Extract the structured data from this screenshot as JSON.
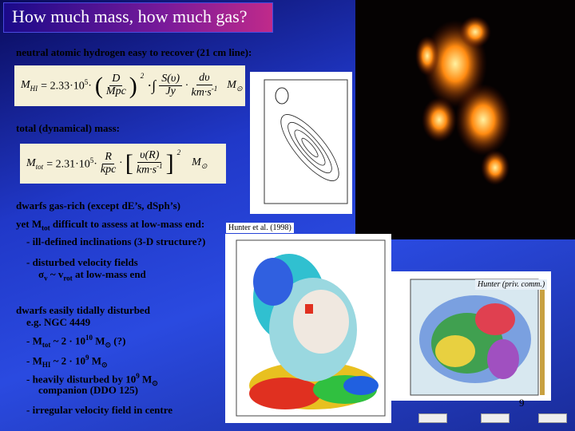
{
  "title": "How much mass, how much gas?",
  "hi_heading": "neutral atomic hydrogen easy to recover (21 cm line):",
  "hi_formula": {
    "m": "M",
    "sub": "HI",
    "coef": "= 2.33·10",
    "exp": "5",
    "dot1": "·",
    "d_num": "D",
    "d_den": "Mpc",
    "pow": "2",
    "integral": "·∫",
    "s_num": "S(υ)",
    "s_den": "Jy",
    "dot2": "·",
    "v_num": "dυ",
    "v_den": "km·s",
    "v_exp": "-1",
    "sun_m": "M",
    "sun": "⊙"
  },
  "dyn_heading": "total (dynamical) mass:",
  "dyn_formula": {
    "m": "M",
    "sub": "tot",
    "coef": "= 2.31·10",
    "exp": "5",
    "dot1": "·",
    "r_num": "R",
    "r_den": "kpc",
    "dot2": "·",
    "v_num": "υ(R)",
    "v_den": "km·s",
    "v_exp": "-1",
    "pow": "2",
    "sun_m": "M",
    "sun": "⊙"
  },
  "lines": [
    [
      "dwarfs gas-rich (except dE’s, dSph’s)"
    ],
    [
      "yet M",
      "tot",
      " difficult to assess at low-mass end:"
    ],
    [
      "- ill-defined inclinations (3-D structure?)"
    ],
    [
      "- disturbed velocity fields"
    ],
    [
      "σ",
      "v",
      " ~ v",
      "rot",
      " at low-mass end"
    ],
    [
      "dwarfs easily tidally disturbed"
    ],
    [
      "e.g. NGC 4449"
    ],
    [
      "- M",
      "tot",
      " ~ 2 · 10",
      "10",
      " M",
      "⊙",
      " (?)"
    ],
    [
      "- M",
      "HI",
      " ~ 2 · 10",
      "9",
      " M",
      "⊙"
    ],
    [
      "- heavily disturbed by 10",
      "9",
      " M",
      "⊙"
    ],
    [
      "companion (DDO 125)"
    ],
    [
      "- irregular velocity field in centre"
    ]
  ],
  "captions": [
    "Hunter et al. (1998)",
    "Hunter (priv. comm.)"
  ],
  "slide_number": "9"
}
